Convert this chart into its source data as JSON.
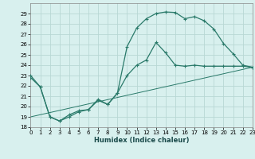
{
  "xlabel": "Humidex (Indice chaleur)",
  "xlim": [
    0,
    23
  ],
  "ylim": [
    18,
    30
  ],
  "yticks": [
    18,
    19,
    20,
    21,
    22,
    23,
    24,
    25,
    26,
    27,
    28,
    29
  ],
  "xticks": [
    0,
    1,
    2,
    3,
    4,
    5,
    6,
    7,
    8,
    9,
    10,
    11,
    12,
    13,
    14,
    15,
    16,
    17,
    18,
    19,
    20,
    21,
    22,
    23
  ],
  "bg_color": "#d8f0ee",
  "grid_color": "#b8d8d4",
  "line_color": "#2a7a6a",
  "line1_x": [
    0,
    1,
    2,
    3,
    4,
    5,
    6,
    7,
    8,
    9,
    10,
    11,
    12,
    13,
    14,
    15,
    16,
    17,
    18,
    19,
    20,
    21,
    22,
    23
  ],
  "line1_y": [
    23.0,
    21.9,
    19.0,
    18.6,
    19.0,
    19.5,
    19.7,
    20.6,
    20.2,
    21.3,
    25.8,
    27.6,
    28.5,
    29.0,
    29.15,
    29.1,
    28.5,
    28.7,
    28.3,
    27.5,
    26.1,
    25.1,
    24.0,
    23.8
  ],
  "line2_x": [
    0,
    1,
    2,
    3,
    4,
    5,
    6,
    7,
    8,
    9,
    10,
    11,
    12,
    13,
    14,
    15,
    16,
    17,
    18,
    19,
    20,
    21,
    22,
    23
  ],
  "line2_y": [
    22.8,
    21.9,
    19.0,
    18.6,
    19.2,
    19.6,
    19.7,
    20.7,
    20.2,
    21.3,
    23.0,
    24.0,
    24.5,
    26.2,
    25.2,
    24.0,
    23.9,
    24.0,
    23.9,
    23.9,
    23.9,
    23.9,
    23.9,
    23.8
  ],
  "line3_x": [
    0,
    23
  ],
  "line3_y": [
    19.0,
    23.8
  ]
}
